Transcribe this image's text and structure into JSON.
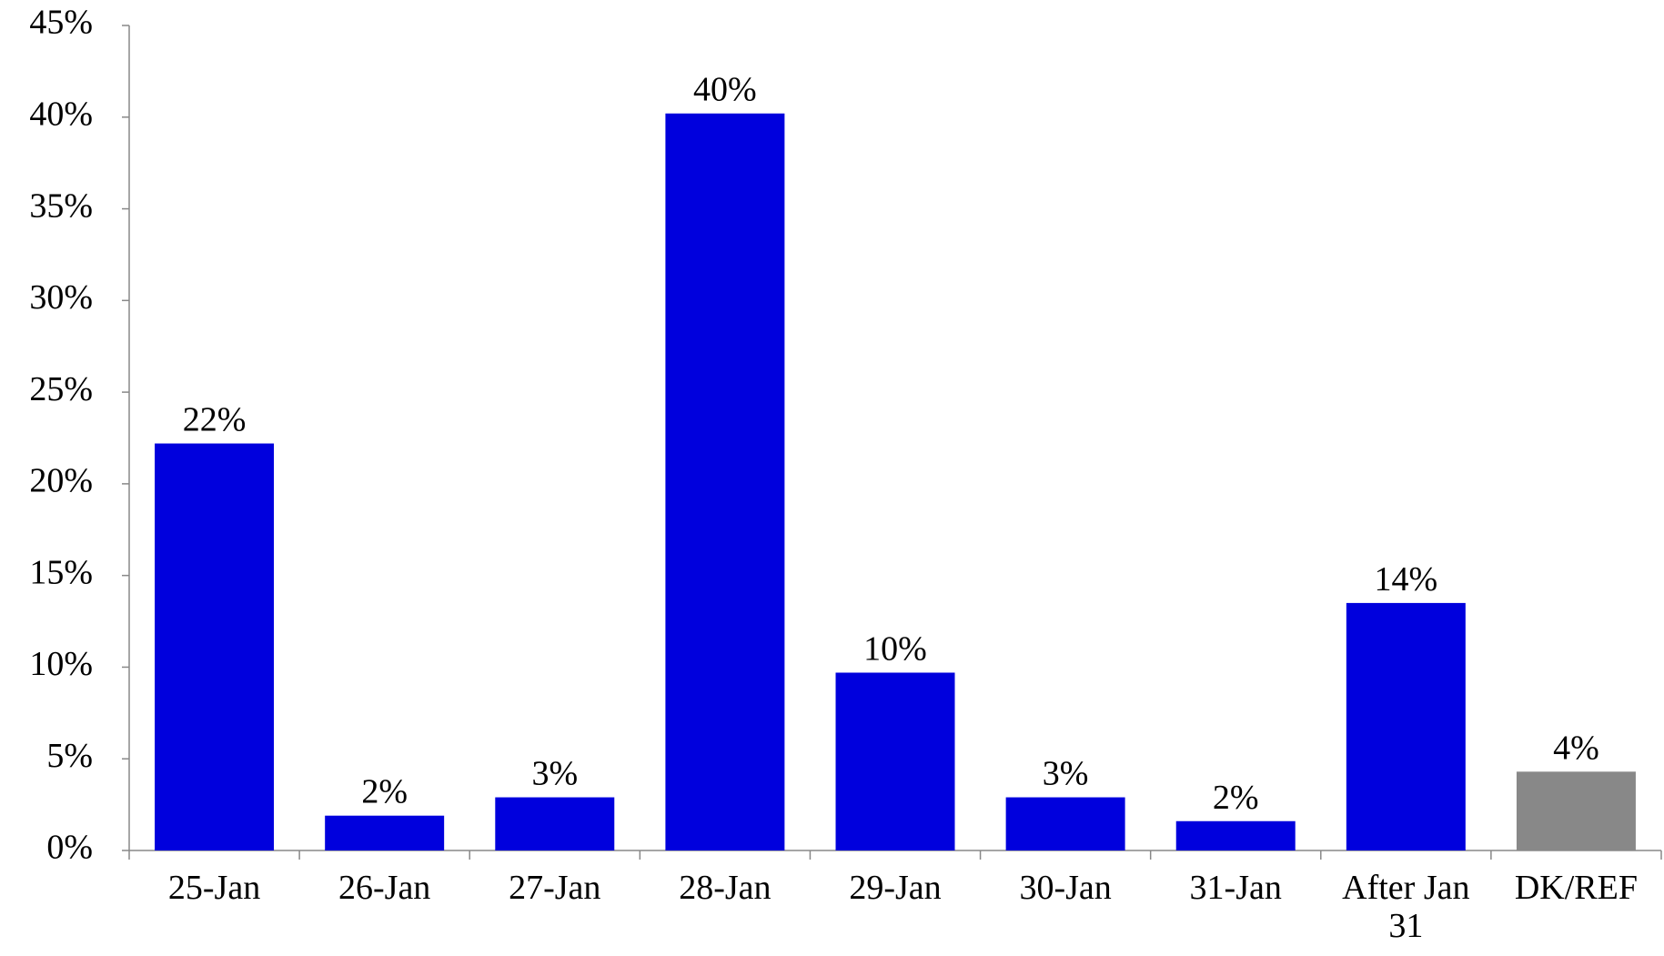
{
  "chart_data": {
    "type": "bar",
    "categories": [
      "25-Jan",
      "26-Jan",
      "27-Jan",
      "28-Jan",
      "29-Jan",
      "30-Jan",
      "31-Jan",
      "After Jan 31",
      "DK/REF"
    ],
    "values": [
      22.2,
      1.9,
      2.9,
      40.2,
      9.7,
      2.9,
      1.6,
      13.5,
      4.3
    ],
    "value_labels": [
      "22%",
      "2%",
      "3%",
      "40%",
      "10%",
      "3%",
      "2%",
      "14%",
      "4%"
    ],
    "colors": [
      "#0000dd",
      "#0000dd",
      "#0000dd",
      "#0000dd",
      "#0000dd",
      "#0000dd",
      "#0000dd",
      "#0000dd",
      "#888888"
    ],
    "ylim": [
      0,
      45
    ],
    "yticks": [
      {
        "value": 0,
        "label": "0%"
      },
      {
        "value": 5,
        "label": "5%"
      },
      {
        "value": 10,
        "label": "10%"
      },
      {
        "value": 15,
        "label": "15%"
      },
      {
        "value": 20,
        "label": "20%"
      },
      {
        "value": 25,
        "label": "25%"
      },
      {
        "value": 30,
        "label": "30%"
      },
      {
        "value": 35,
        "label": "35%"
      },
      {
        "value": 40,
        "label": "40%"
      },
      {
        "value": 45,
        "label": "45%"
      }
    ],
    "grid": false
  }
}
